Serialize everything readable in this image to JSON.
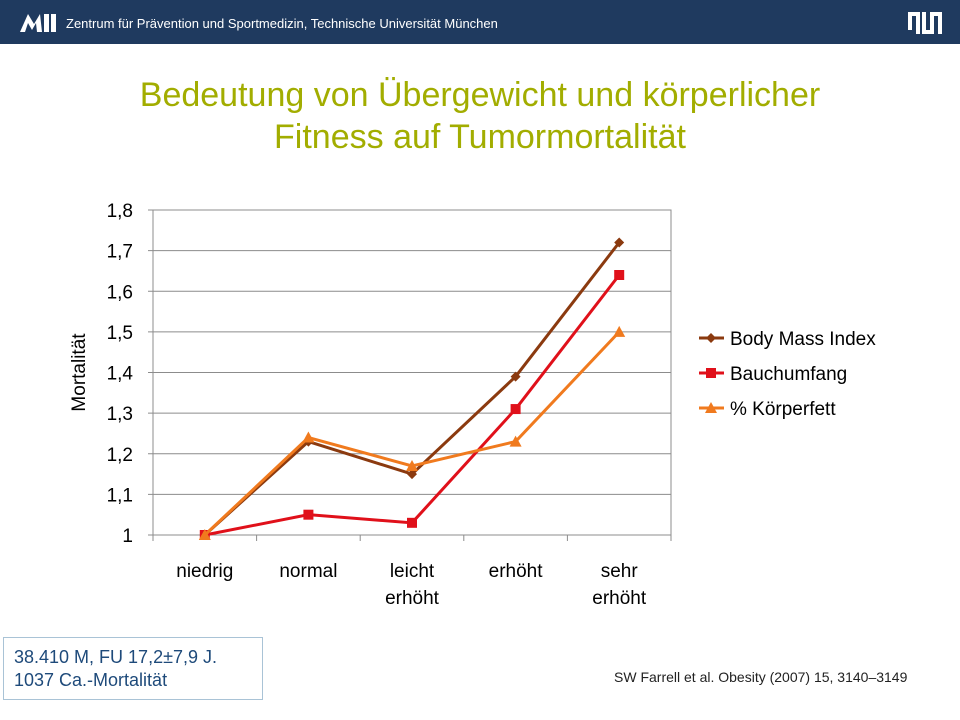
{
  "header": {
    "institute": "Zentrum für Prävention und Sportmedizin, Technische Universität München",
    "logo_left": "MRI",
    "logo_right": "TUM"
  },
  "title": {
    "line1": "Bedeutung von Übergewicht und körperlicher",
    "line2": "Fitness auf Tumormortalität"
  },
  "chart_data": {
    "type": "line",
    "title": "",
    "xlabel": "",
    "ylabel": "Mortalität",
    "categories": [
      [
        "niedrig"
      ],
      [
        "normal"
      ],
      [
        "leicht",
        "erhöht"
      ],
      [
        "erhöht"
      ],
      [
        "sehr",
        "erhöht"
      ]
    ],
    "ylim": [
      1,
      1.8
    ],
    "yticks": [
      "1",
      "1,1",
      "1,2",
      "1,3",
      "1,4",
      "1,5",
      "1,6",
      "1,7",
      "1,8"
    ],
    "grid": "horizontal",
    "legend_position": "right",
    "series": [
      {
        "name": "Body Mass Index",
        "values": [
          1.0,
          1.23,
          1.15,
          1.39,
          1.72
        ],
        "color": "#8b3a0f",
        "marker": "diamond"
      },
      {
        "name": "Bauchumfang",
        "values": [
          1.0,
          1.05,
          1.03,
          1.31,
          1.64
        ],
        "color": "#e0101a",
        "marker": "square"
      },
      {
        "name": "% Körperfett",
        "values": [
          1.0,
          1.24,
          1.17,
          1.23,
          1.5
        ],
        "color": "#f07a1e",
        "marker": "triangle"
      }
    ]
  },
  "info_box": {
    "line1": "38.410 M, FU 17,2±7,9 J.",
    "line2": "1037 Ca.-Mortalität"
  },
  "citation": "SW Farrell et al. Obesity (2007) 15, 3140–3149"
}
